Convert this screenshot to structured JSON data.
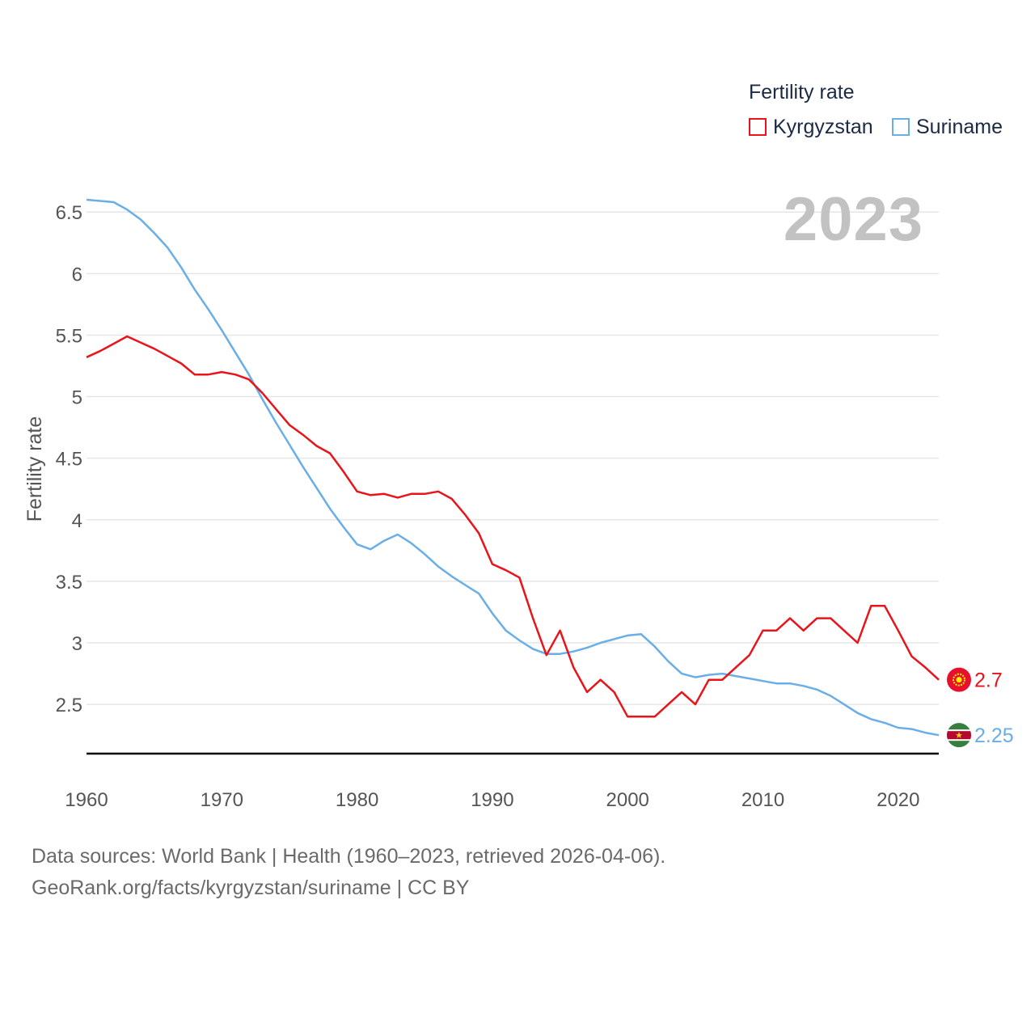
{
  "colors": {
    "kyrgyzstan": "#e8141a",
    "suriname": "#6aaee8",
    "grid": "#e6e6e6",
    "axis": "#000000",
    "tick": "#555555"
  },
  "legend": {
    "title": "Fertility rate",
    "items": [
      {
        "label": "Kyrgyzstan",
        "color": "#e8141a"
      },
      {
        "label": "Suriname",
        "color": "#6aaee8"
      }
    ]
  },
  "year_label": "2023",
  "footer": {
    "line1": "Data sources: World Bank | Health (1960–2023, retrieved 2026-04-06).",
    "line2": "GeoRank.org/facts/kyrgyzstan/suriname | CC BY"
  },
  "chart_data": {
    "type": "line",
    "title": "Fertility rate",
    "xlabel": "",
    "ylabel": "Fertility rate",
    "xlim": [
      1960,
      2023
    ],
    "ylim": [
      2.1,
      6.6
    ],
    "grid": true,
    "legend_position": "top-right",
    "x_ticks": [
      1960,
      1970,
      1980,
      1990,
      2000,
      2010,
      2020
    ],
    "y_ticks": [
      2.5,
      3,
      3.5,
      4,
      4.5,
      5,
      5.5,
      6,
      6.5
    ],
    "y_tick_labels": [
      "2.5",
      "3",
      "3.5",
      "4",
      "4.5",
      "5",
      "5.5",
      "6",
      "6.5"
    ],
    "x": [
      1960,
      1961,
      1962,
      1963,
      1964,
      1965,
      1966,
      1967,
      1968,
      1969,
      1970,
      1971,
      1972,
      1973,
      1974,
      1975,
      1976,
      1977,
      1978,
      1979,
      1980,
      1981,
      1982,
      1983,
      1984,
      1985,
      1986,
      1987,
      1988,
      1989,
      1990,
      1991,
      1992,
      1993,
      1994,
      1995,
      1996,
      1997,
      1998,
      1999,
      2000,
      2001,
      2002,
      2003,
      2004,
      2005,
      2006,
      2007,
      2008,
      2009,
      2010,
      2011,
      2012,
      2013,
      2014,
      2015,
      2016,
      2017,
      2018,
      2019,
      2020,
      2021,
      2022,
      2023
    ],
    "series": [
      {
        "name": "Kyrgyzstan",
        "end_label": "2.7",
        "values": [
          5.32,
          5.37,
          5.43,
          5.49,
          5.44,
          5.39,
          5.33,
          5.27,
          5.18,
          5.18,
          5.2,
          5.18,
          5.14,
          5.03,
          4.9,
          4.77,
          4.69,
          4.6,
          4.54,
          4.39,
          4.23,
          4.2,
          4.21,
          4.18,
          4.21,
          4.21,
          4.23,
          4.17,
          4.04,
          3.89,
          3.64,
          3.59,
          3.53,
          3.2,
          2.9,
          3.1,
          2.8,
          2.6,
          2.7,
          2.6,
          2.4,
          2.4,
          2.4,
          2.5,
          2.6,
          2.5,
          2.7,
          2.7,
          2.8,
          2.9,
          3.1,
          3.1,
          3.2,
          3.1,
          3.2,
          3.2,
          3.1,
          3.0,
          3.3,
          3.3,
          3.1,
          2.89,
          2.8,
          2.7
        ]
      },
      {
        "name": "Suriname",
        "end_label": "2.25",
        "values": [
          6.6,
          6.59,
          6.58,
          6.52,
          6.44,
          6.33,
          6.21,
          6.05,
          5.87,
          5.71,
          5.54,
          5.36,
          5.18,
          4.98,
          4.79,
          4.61,
          4.43,
          4.26,
          4.09,
          3.94,
          3.8,
          3.76,
          3.83,
          3.88,
          3.81,
          3.72,
          3.62,
          3.54,
          3.47,
          3.4,
          3.24,
          3.1,
          3.02,
          2.95,
          2.91,
          2.91,
          2.93,
          2.96,
          3.0,
          3.03,
          3.06,
          3.07,
          2.97,
          2.85,
          2.75,
          2.72,
          2.74,
          2.75,
          2.73,
          2.71,
          2.69,
          2.67,
          2.67,
          2.65,
          2.62,
          2.57,
          2.5,
          2.43,
          2.38,
          2.35,
          2.31,
          2.3,
          2.27,
          2.25
        ]
      }
    ]
  }
}
